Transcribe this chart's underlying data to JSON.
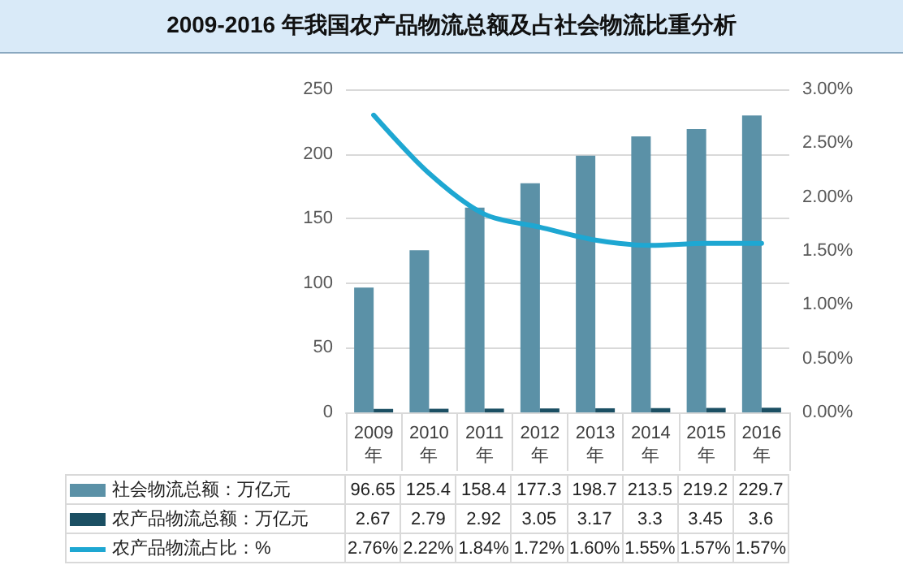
{
  "chart_data": {
    "type": "bar",
    "title": "2009-2016 年我国农产品物流总额及占社会物流比重分析",
    "categories": [
      "2009年",
      "2010年",
      "2011年",
      "2012年",
      "2013年",
      "2014年",
      "2015年",
      "2016年"
    ],
    "series": [
      {
        "name": "社会物流总额：万亿元",
        "color": "#5b91a7",
        "values": [
          96.65,
          125.4,
          158.4,
          177.3,
          198.7,
          213.5,
          219.2,
          229.7
        ],
        "value_labels": [
          "96.65",
          "125.4",
          "158.4",
          "177.3",
          "198.7",
          "213.5",
          "219.2",
          "229.7"
        ]
      },
      {
        "name": "农产品物流总额：万亿元",
        "color": "#1b4f63",
        "values": [
          2.67,
          2.79,
          2.92,
          3.05,
          3.17,
          3.3,
          3.45,
          3.6
        ],
        "value_labels": [
          "2.67",
          "2.79",
          "2.92",
          "3.05",
          "3.17",
          "3.3",
          "3.45",
          "3.6"
        ]
      },
      {
        "name": "农产品物流占比：%",
        "type": "line",
        "axis": "y2",
        "color": "#1ea7d2",
        "values": [
          2.76,
          2.22,
          1.84,
          1.72,
          1.6,
          1.55,
          1.57,
          1.57
        ],
        "value_labels": [
          "2.76%",
          "2.22%",
          "1.84%",
          "1.72%",
          "1.60%",
          "1.55%",
          "1.57%",
          "1.57%"
        ]
      }
    ],
    "ylim": [
      0,
      250
    ],
    "yticks": [
      0,
      50,
      100,
      150,
      200,
      250
    ],
    "y2lim": [
      0,
      3
    ],
    "y2ticks": [
      {
        "value": 0,
        "label": "0.00%"
      },
      {
        "value": 0.5,
        "label": "0.50%"
      },
      {
        "value": 1,
        "label": "1.00%"
      },
      {
        "value": 1.5,
        "label": "1.50%"
      },
      {
        "value": 2,
        "label": "2.00%"
      },
      {
        "value": 2.5,
        "label": "2.50%"
      },
      {
        "value": 3,
        "label": "3.00%"
      }
    ],
    "grid": "y",
    "legend": "bottom left",
    "marker": "none",
    "line_style": "solid"
  }
}
